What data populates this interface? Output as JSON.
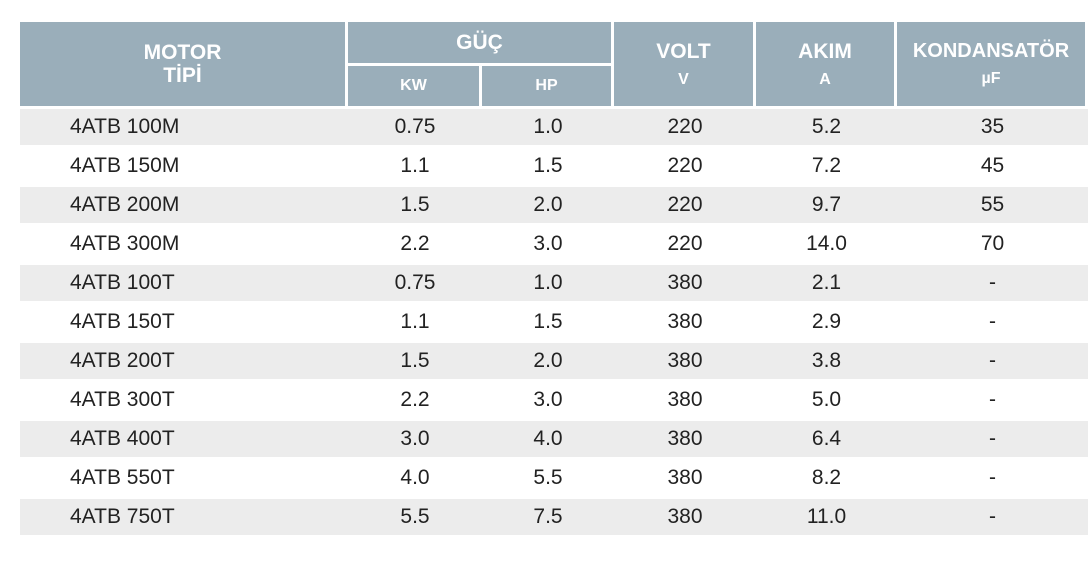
{
  "header": {
    "motor_line1": "MOTOR",
    "motor_line2": "TİPİ",
    "guc": "GÜÇ",
    "kw": "KW",
    "hp": "HP",
    "volt": "VOLT",
    "volt_unit": "V",
    "akim": "AKIM",
    "akim_unit": "A",
    "kondansator": "KONDANSATÖR",
    "kondansator_unit": "µF"
  },
  "colors": {
    "header_bg": "#9aaeba",
    "header_text": "#ffffff",
    "row_stripe": "#ececec",
    "row_plain": "#ffffff",
    "text": "#222222"
  },
  "rows": [
    {
      "motor": "4ATB 100M",
      "kw": "0.75",
      "hp": "1.0",
      "volt": "220",
      "akim": "5.2",
      "kond": "35"
    },
    {
      "motor": "4ATB 150M",
      "kw": "1.1",
      "hp": "1.5",
      "volt": "220",
      "akim": "7.2",
      "kond": "45"
    },
    {
      "motor": "4ATB 200M",
      "kw": "1.5",
      "hp": "2.0",
      "volt": "220",
      "akim": "9.7",
      "kond": "55"
    },
    {
      "motor": "4ATB 300M",
      "kw": "2.2",
      "hp": "3.0",
      "volt": "220",
      "akim": "14.0",
      "kond": "70"
    },
    {
      "motor": "4ATB 100T",
      "kw": "0.75",
      "hp": "1.0",
      "volt": "380",
      "akim": "2.1",
      "kond": "-"
    },
    {
      "motor": "4ATB 150T",
      "kw": "1.1",
      "hp": "1.5",
      "volt": "380",
      "akim": "2.9",
      "kond": "-"
    },
    {
      "motor": "4ATB 200T",
      "kw": "1.5",
      "hp": "2.0",
      "volt": "380",
      "akim": "3.8",
      "kond": "-"
    },
    {
      "motor": "4ATB 300T",
      "kw": "2.2",
      "hp": "3.0",
      "volt": "380",
      "akim": "5.0",
      "kond": "-"
    },
    {
      "motor": "4ATB 400T",
      "kw": "3.0",
      "hp": "4.0",
      "volt": "380",
      "akim": "6.4",
      "kond": "-"
    },
    {
      "motor": "4ATB 550T",
      "kw": "4.0",
      "hp": "5.5",
      "volt": "380",
      "akim": "8.2",
      "kond": "-"
    },
    {
      "motor": "4ATB 750T",
      "kw": "5.5",
      "hp": "7.5",
      "volt": "380",
      "akim": "11.0",
      "kond": "-"
    }
  ]
}
